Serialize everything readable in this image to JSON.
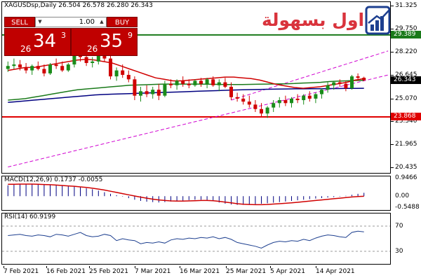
{
  "chart_header": {
    "symbol_line": "XAGUSDsp,Daily  26.504 26.578 26.280 26.343",
    "macd_label": "MACD(12,26,9) 0.1737 -0.0055",
    "rsi_label": "RSI(14) 60.9199"
  },
  "trade_panel": {
    "sell_label": "SELL",
    "buy_label": "BUY",
    "lot_value": "1.00",
    "sell_price": {
      "small": "26",
      "big": "34",
      "sup": "3"
    },
    "buy_price": {
      "small": "26",
      "big": "35",
      "sup": "9"
    }
  },
  "logo": {
    "text": "التداول بسهولة"
  },
  "price_scale": {
    "ticks": [
      "31.325",
      "29.750",
      "28.220",
      "26.645",
      "25.070",
      "23.540",
      "21.965",
      "20.435"
    ],
    "tags": [
      {
        "text": "29.389",
        "bg": "#1a7a1a",
        "color": "#ffffff"
      },
      {
        "text": "26.343",
        "bg": "#000000",
        "color": "#ffffff"
      },
      {
        "text": "23.868",
        "bg": "#e00000",
        "color": "#ffffff"
      }
    ]
  },
  "macd_scale": {
    "ticks": [
      "0.9466",
      "0.00",
      "-0.5488"
    ]
  },
  "rsi_scale": {
    "ticks": [
      "70",
      "30"
    ]
  },
  "xaxis": {
    "labels": [
      "7 Feb 2021",
      "16 Feb 2021",
      "25 Feb 2021",
      "7 Mar 2021",
      "16 Mar 2021",
      "25 Mar 2021",
      "5 Apr 2021",
      "14 Apr 2021"
    ]
  },
  "colors": {
    "bull": "#1a8c1a",
    "bear": "#d00000",
    "ma_fast": "#d00000",
    "ma_mid": "#1a7a1a",
    "ma_slow": "#000080",
    "channel": "#d000d0",
    "resistance": "#1a7a1a",
    "support": "#e00000"
  },
  "chart_data": {
    "type": "candlestick",
    "symbol": "XAGUSDsp",
    "timeframe": "Daily",
    "last": {
      "open": 26.504,
      "high": 26.578,
      "low": 26.28,
      "close": 26.343
    },
    "ylim": [
      20.1,
      31.6
    ],
    "candles": [
      {
        "o": 27.1,
        "h": 27.6,
        "l": 26.9,
        "c": 27.3
      },
      {
        "o": 27.3,
        "h": 27.8,
        "l": 27.1,
        "c": 27.4
      },
      {
        "o": 27.4,
        "h": 27.7,
        "l": 27.0,
        "c": 27.2
      },
      {
        "o": 27.2,
        "h": 27.5,
        "l": 26.8,
        "c": 27.0
      },
      {
        "o": 27.0,
        "h": 27.4,
        "l": 26.7,
        "c": 27.3
      },
      {
        "o": 27.3,
        "h": 27.6,
        "l": 27.0,
        "c": 27.1
      },
      {
        "o": 27.1,
        "h": 27.4,
        "l": 26.6,
        "c": 26.8
      },
      {
        "o": 26.8,
        "h": 27.5,
        "l": 26.7,
        "c": 27.4
      },
      {
        "o": 27.4,
        "h": 27.8,
        "l": 27.1,
        "c": 27.3
      },
      {
        "o": 27.3,
        "h": 27.6,
        "l": 26.9,
        "c": 27.0
      },
      {
        "o": 27.0,
        "h": 27.5,
        "l": 26.9,
        "c": 27.4
      },
      {
        "o": 27.4,
        "h": 28.9,
        "l": 27.2,
        "c": 28.6
      },
      {
        "o": 28.6,
        "h": 29.2,
        "l": 27.6,
        "c": 27.9
      },
      {
        "o": 27.9,
        "h": 28.2,
        "l": 27.3,
        "c": 27.5
      },
      {
        "o": 27.5,
        "h": 27.9,
        "l": 27.2,
        "c": 27.6
      },
      {
        "o": 27.6,
        "h": 28.3,
        "l": 27.4,
        "c": 28.1
      },
      {
        "o": 28.1,
        "h": 28.4,
        "l": 27.6,
        "c": 27.8
      },
      {
        "o": 27.8,
        "h": 28.1,
        "l": 26.4,
        "c": 26.6
      },
      {
        "o": 26.6,
        "h": 27.2,
        "l": 26.3,
        "c": 27.0
      },
      {
        "o": 27.0,
        "h": 27.4,
        "l": 26.5,
        "c": 26.7
      },
      {
        "o": 26.7,
        "h": 27.0,
        "l": 26.2,
        "c": 26.4
      },
      {
        "o": 26.4,
        "h": 26.6,
        "l": 25.0,
        "c": 25.3
      },
      {
        "o": 25.3,
        "h": 25.9,
        "l": 24.9,
        "c": 25.6
      },
      {
        "o": 25.6,
        "h": 26.0,
        "l": 25.2,
        "c": 25.4
      },
      {
        "o": 25.4,
        "h": 25.9,
        "l": 25.1,
        "c": 25.7
      },
      {
        "o": 25.7,
        "h": 26.1,
        "l": 25.0,
        "c": 25.3
      },
      {
        "o": 25.3,
        "h": 26.3,
        "l": 25.2,
        "c": 26.1
      },
      {
        "o": 26.1,
        "h": 26.4,
        "l": 25.8,
        "c": 26.0
      },
      {
        "o": 26.0,
        "h": 26.4,
        "l": 25.7,
        "c": 26.3
      },
      {
        "o": 26.3,
        "h": 26.6,
        "l": 25.9,
        "c": 26.1
      },
      {
        "o": 26.1,
        "h": 26.4,
        "l": 25.8,
        "c": 26.0
      },
      {
        "o": 26.0,
        "h": 26.4,
        "l": 25.9,
        "c": 26.3
      },
      {
        "o": 26.3,
        "h": 26.5,
        "l": 25.9,
        "c": 26.1
      },
      {
        "o": 26.1,
        "h": 26.5,
        "l": 25.8,
        "c": 26.4
      },
      {
        "o": 26.4,
        "h": 26.6,
        "l": 25.9,
        "c": 26.0
      },
      {
        "o": 26.0,
        "h": 26.4,
        "l": 25.6,
        "c": 26.2
      },
      {
        "o": 26.2,
        "h": 26.5,
        "l": 25.8,
        "c": 25.9
      },
      {
        "o": 25.9,
        "h": 26.2,
        "l": 25.0,
        "c": 25.2
      },
      {
        "o": 25.2,
        "h": 25.5,
        "l": 24.9,
        "c": 25.1
      },
      {
        "o": 25.1,
        "h": 25.4,
        "l": 24.7,
        "c": 24.9
      },
      {
        "o": 24.9,
        "h": 25.3,
        "l": 24.5,
        "c": 24.7
      },
      {
        "o": 24.7,
        "h": 25.0,
        "l": 24.2,
        "c": 24.4
      },
      {
        "o": 24.4,
        "h": 24.8,
        "l": 23.9,
        "c": 24.1
      },
      {
        "o": 24.1,
        "h": 24.6,
        "l": 23.8,
        "c": 24.5
      },
      {
        "o": 24.5,
        "h": 25.0,
        "l": 24.2,
        "c": 24.8
      },
      {
        "o": 24.8,
        "h": 25.2,
        "l": 24.5,
        "c": 25.0
      },
      {
        "o": 25.0,
        "h": 25.3,
        "l": 24.6,
        "c": 24.8
      },
      {
        "o": 24.8,
        "h": 25.2,
        "l": 24.5,
        "c": 25.1
      },
      {
        "o": 25.1,
        "h": 25.4,
        "l": 24.8,
        "c": 25.0
      },
      {
        "o": 25.0,
        "h": 25.4,
        "l": 24.7,
        "c": 25.3
      },
      {
        "o": 25.3,
        "h": 25.6,
        "l": 24.9,
        "c": 25.1
      },
      {
        "o": 25.1,
        "h": 25.5,
        "l": 24.8,
        "c": 25.4
      },
      {
        "o": 25.4,
        "h": 25.8,
        "l": 25.1,
        "c": 25.7
      },
      {
        "o": 25.7,
        "h": 26.2,
        "l": 25.5,
        "c": 26.0
      },
      {
        "o": 26.0,
        "h": 26.3,
        "l": 25.7,
        "c": 26.2
      },
      {
        "o": 26.2,
        "h": 26.4,
        "l": 25.9,
        "c": 26.1
      },
      {
        "o": 26.1,
        "h": 26.3,
        "l": 25.6,
        "c": 25.8
      },
      {
        "o": 25.8,
        "h": 26.7,
        "l": 25.7,
        "c": 26.6
      },
      {
        "o": 26.6,
        "h": 26.8,
        "l": 26.3,
        "c": 26.5
      },
      {
        "o": 26.504,
        "h": 26.578,
        "l": 26.28,
        "c": 26.343
      }
    ],
    "ma_fast": [
      27.0,
      27.1,
      27.2,
      27.2,
      27.3,
      27.4,
      27.5,
      27.6,
      27.7,
      27.75,
      27.7,
      27.6,
      27.5,
      27.3,
      27.1,
      26.9,
      26.7,
      26.5,
      26.4,
      26.3,
      26.3,
      26.35,
      26.4,
      26.45,
      26.5,
      26.55,
      26.55,
      26.5,
      26.45,
      26.35,
      26.2,
      26.05,
      25.95,
      25.85,
      25.8,
      25.85,
      25.9,
      26.0,
      26.1,
      26.2,
      26.35,
      26.45
    ],
    "ma_mid": [
      25.0,
      25.05,
      25.1,
      25.2,
      25.3,
      25.4,
      25.5,
      25.6,
      25.7,
      25.75,
      25.8,
      25.85,
      25.9,
      25.95,
      26.0,
      26.02,
      26.04,
      26.06,
      26.08,
      26.08,
      26.08,
      26.08,
      26.08,
      26.07,
      26.06,
      26.05,
      26.05,
      26.05,
      26.06,
      26.07,
      26.08,
      26.09,
      26.1,
      26.12,
      26.15,
      26.17,
      26.2,
      26.25,
      26.28,
      26.3,
      26.32,
      26.33
    ],
    "ma_slow": [
      24.85,
      24.9,
      24.95,
      25.0,
      25.05,
      25.1,
      25.15,
      25.2,
      25.25,
      25.3,
      25.35,
      25.38,
      25.4,
      25.42,
      25.44,
      25.46,
      25.48,
      25.5,
      25.52,
      25.54,
      25.56,
      25.58,
      25.6,
      25.62,
      25.64,
      25.66,
      25.68,
      25.7,
      25.71,
      25.72,
      25.73,
      25.74,
      25.75,
      25.76,
      25.76,
      25.77,
      25.77,
      25.78,
      25.78,
      25.79,
      25.79,
      25.8
    ],
    "channel_upper": [
      [
        37,
        25.0
      ],
      [
        59,
        27.8
      ]
    ],
    "channel_lower": [
      [
        0,
        20.5
      ],
      [
        59,
        26.3
      ]
    ],
    "resistance": 29.389,
    "support": 23.868,
    "macd": {
      "ylim": [
        -0.7,
        1.0
      ],
      "hist": [
        0.55,
        0.58,
        0.6,
        0.62,
        0.63,
        0.62,
        0.6,
        0.57,
        0.55,
        0.53,
        0.5,
        0.48,
        0.45,
        0.4,
        0.35,
        0.28,
        0.2,
        0.12,
        0.05,
        -0.02,
        -0.1,
        -0.18,
        -0.24,
        -0.28,
        -0.3,
        -0.32,
        -0.3,
        -0.27,
        -0.24,
        -0.22,
        -0.2,
        -0.18,
        -0.18,
        -0.2,
        -0.25,
        -0.32,
        -0.38,
        -0.42,
        -0.44,
        -0.44,
        -0.42,
        -0.4,
        -0.38,
        -0.36,
        -0.33,
        -0.3,
        -0.27,
        -0.24,
        -0.21,
        -0.18,
        -0.15,
        -0.12,
        -0.1,
        -0.07,
        -0.05,
        -0.02,
        0.02,
        0.07,
        0.12,
        0.17
      ],
      "signal": [
        0.6,
        0.6,
        0.61,
        0.61,
        0.61,
        0.6,
        0.59,
        0.58,
        0.56,
        0.54,
        0.52,
        0.5,
        0.47,
        0.44,
        0.4,
        0.36,
        0.31,
        0.25,
        0.19,
        0.13,
        0.07,
        0.01,
        -0.05,
        -0.1,
        -0.15,
        -0.19,
        -0.22,
        -0.24,
        -0.25,
        -0.25,
        -0.24,
        -0.23,
        -0.22,
        -0.22,
        -0.23,
        -0.26,
        -0.3,
        -0.34,
        -0.38,
        -0.41,
        -0.42,
        -0.43,
        -0.43,
        -0.42,
        -0.4,
        -0.38,
        -0.36,
        -0.34,
        -0.31,
        -0.28,
        -0.25,
        -0.22,
        -0.19,
        -0.16,
        -0.13,
        -0.1,
        -0.07,
        -0.04,
        -0.02,
        -0.0055
      ]
    },
    "rsi": {
      "ylim": [
        10,
        90
      ],
      "levels": [
        70,
        30
      ],
      "values": [
        55,
        56,
        57,
        55,
        54,
        56,
        55,
        53,
        57,
        56,
        54,
        57,
        60,
        55,
        53,
        54,
        57,
        55,
        47,
        50,
        48,
        47,
        42,
        44,
        43,
        45,
        43,
        48,
        50,
        49,
        51,
        50,
        52,
        51,
        53,
        50,
        52,
        49,
        44,
        42,
        40,
        38,
        35,
        40,
        44,
        46,
        45,
        47,
        46,
        49,
        47,
        51,
        54,
        56,
        55,
        53,
        52,
        60,
        62,
        60.92
      ]
    }
  }
}
